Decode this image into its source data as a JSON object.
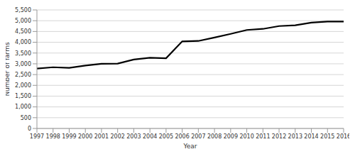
{
  "chart_data": {
    "type": "line",
    "x_label": "Year",
    "y_label": "Number of farms",
    "categories": [
      "1997",
      "1998",
      "1999",
      "2000",
      "2001",
      "2002",
      "2003",
      "2004",
      "2005",
      "2006",
      "2007",
      "2008",
      "2009",
      "2010",
      "2011",
      "2012",
      "2013",
      "2014",
      "2015",
      "2016"
    ],
    "values": [
      2780,
      2840,
      2810,
      2920,
      3000,
      3010,
      3200,
      3280,
      3260,
      4040,
      4060,
      4220,
      4390,
      4570,
      4620,
      4750,
      4790,
      4910,
      4960,
      4960
    ],
    "color": "#000000",
    "ylim": [
      0,
      5500
    ],
    "yticks": [
      0,
      500,
      {
        "value": 1000,
        "label": "1,000"
      },
      {
        "value": 1500,
        "label": "1,500"
      },
      {
        "value": 2000,
        "label": "2,000"
      },
      {
        "value": 2500,
        "label": "2,500"
      },
      {
        "value": 3000,
        "label": "3,000"
      },
      {
        "value": 3500,
        "label": "3,500"
      },
      {
        "value": 4000,
        "label": "4,000"
      },
      {
        "value": 4500,
        "label": "4,500"
      },
      {
        "value": 5000,
        "label": "5,000"
      },
      {
        "value": 5500,
        "label": "5,500"
      }
    ],
    "grid": true
  }
}
